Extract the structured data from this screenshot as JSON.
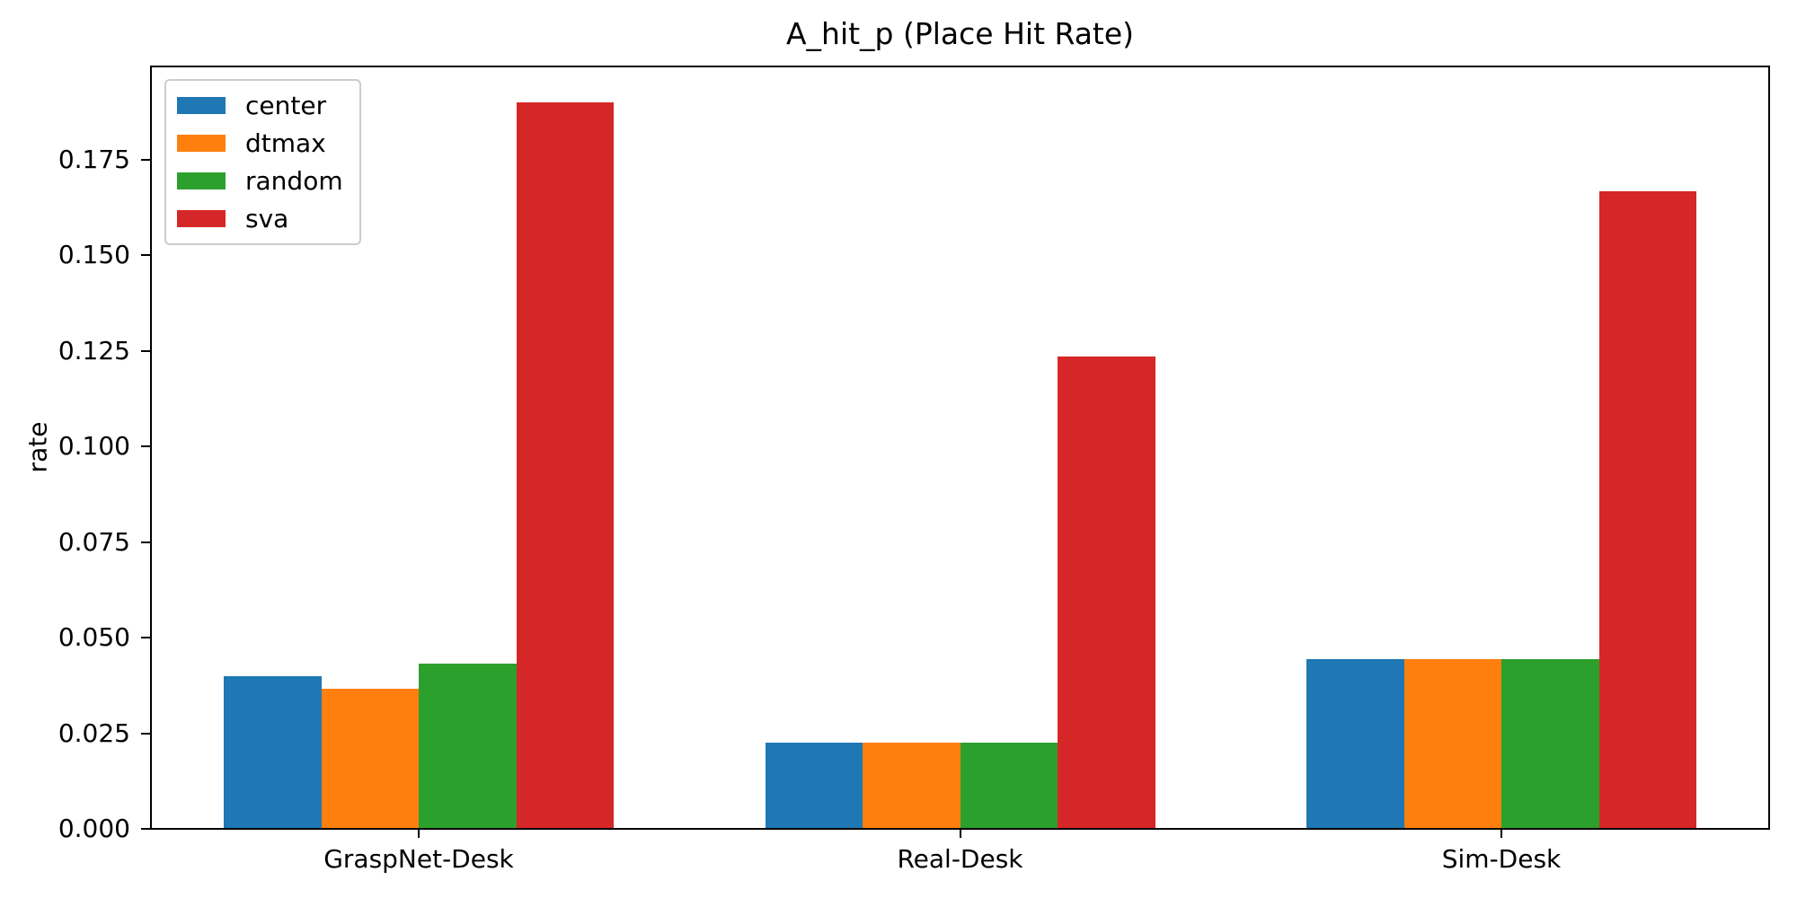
{
  "chart_data": {
    "type": "bar",
    "title": "A_hit_p (Place Hit Rate)",
    "xlabel": "",
    "ylabel": "rate",
    "categories": [
      "GraspNet-Desk",
      "Real-Desk",
      "Sim-Desk"
    ],
    "series": [
      {
        "name": "center",
        "color": "#1f77b4",
        "values": [
          0.04,
          0.0225,
          0.0444
        ]
      },
      {
        "name": "dtmax",
        "color": "#ff7f0e",
        "values": [
          0.0367,
          0.0225,
          0.0444
        ]
      },
      {
        "name": "random",
        "color": "#2ca02c",
        "values": [
          0.0433,
          0.0225,
          0.0444
        ]
      },
      {
        "name": "sva",
        "color": "#d62728",
        "values": [
          0.19,
          0.1236,
          0.1667
        ]
      }
    ],
    "ylim": [
      0,
      0.1994
    ],
    "yticks": [
      {
        "value": 0.0,
        "label": "0.000"
      },
      {
        "value": 0.025,
        "label": "0.025"
      },
      {
        "value": 0.05,
        "label": "0.050"
      },
      {
        "value": 0.075,
        "label": "0.075"
      },
      {
        "value": 0.1,
        "label": "0.100"
      },
      {
        "value": 0.125,
        "label": "0.125"
      },
      {
        "value": 0.15,
        "label": "0.150"
      },
      {
        "value": 0.175,
        "label": "0.175"
      }
    ],
    "grid": false,
    "legend_position": "upper left",
    "axis_color": "#000000",
    "background_color": "#ffffff"
  }
}
